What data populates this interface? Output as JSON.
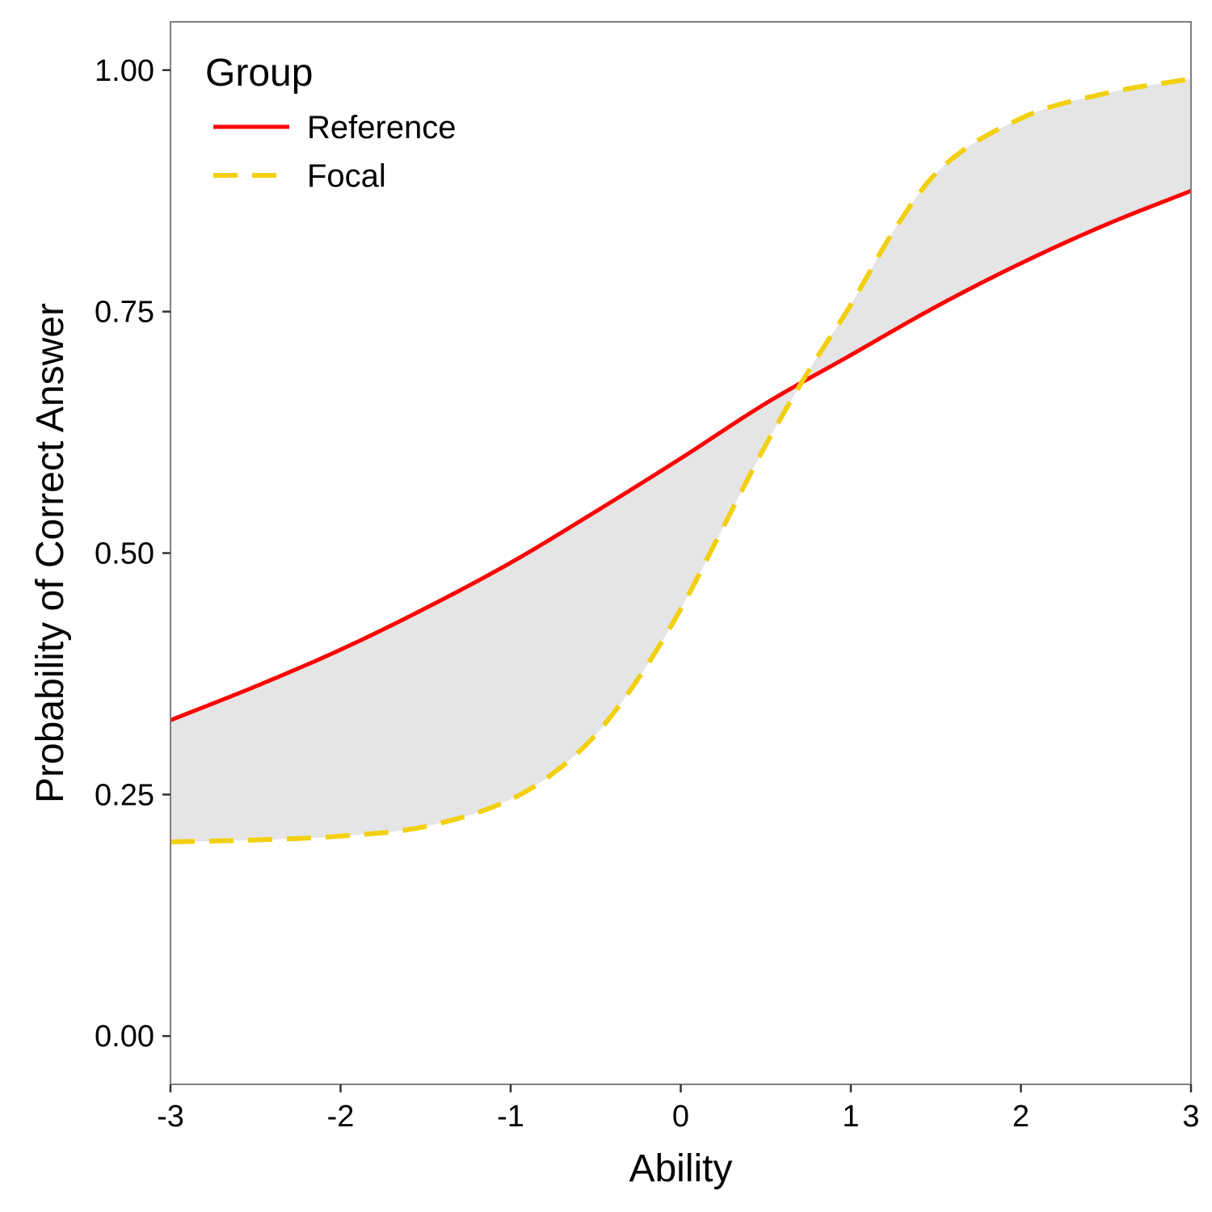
{
  "chart_data": {
    "type": "line",
    "xlabel": "Ability",
    "ylabel": "Probability of Correct Answer",
    "xlim": [
      -3,
      3
    ],
    "ylim": [
      -0.05,
      1.05
    ],
    "x_ticks": [
      -3,
      -2,
      -1,
      0,
      1,
      2,
      3
    ],
    "x_tick_labels": [
      "-3",
      "-2",
      "-1",
      "0",
      "1",
      "2",
      "3"
    ],
    "y_ticks": [
      0,
      0.25,
      0.5,
      0.75,
      1
    ],
    "y_tick_labels": [
      "0.00",
      "0.25",
      "0.50",
      "0.75",
      "1.00"
    ],
    "grid": false,
    "legend": {
      "title": "Group",
      "placement": "top-left"
    },
    "fill_between": {
      "color": "#e5e5e5"
    },
    "series": [
      {
        "name": "Reference",
        "color": "#ff0000",
        "dash": "solid",
        "x": [
          -3.0,
          -2.5,
          -2.0,
          -1.5,
          -1.0,
          -0.5,
          0.0,
          0.5,
          1.0,
          1.5,
          2.0,
          2.5,
          3.0
        ],
        "y": [
          0.327,
          0.362,
          0.4,
          0.443,
          0.49,
          0.543,
          0.598,
          0.655,
          0.705,
          0.755,
          0.8,
          0.84,
          0.875
        ]
      },
      {
        "name": "Focal",
        "color": "#f2d00f",
        "dash": "dashed",
        "x": [
          -3.0,
          -2.5,
          -2.0,
          -1.5,
          -1.0,
          -0.75,
          -0.5,
          -0.25,
          0.0,
          0.25,
          0.5,
          0.75,
          1.0,
          1.25,
          1.5,
          2.0,
          2.5,
          3.0
        ],
        "y": [
          0.201,
          0.203,
          0.207,
          0.217,
          0.245,
          0.272,
          0.312,
          0.37,
          0.442,
          0.527,
          0.612,
          0.688,
          0.757,
          0.833,
          0.893,
          0.95,
          0.976,
          0.991
        ]
      }
    ]
  }
}
